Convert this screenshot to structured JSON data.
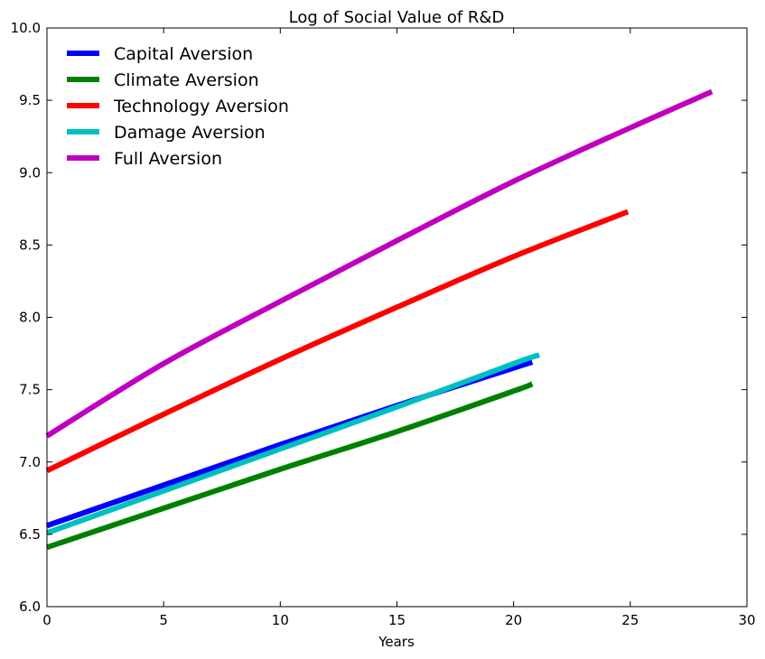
{
  "chart_data": {
    "type": "line",
    "title": "Log of Social Value of R&D",
    "xlabel": "Years",
    "ylabel": "",
    "xlim": [
      0,
      30
    ],
    "ylim": [
      6.0,
      10.0
    ],
    "xticks": [
      "0",
      "5",
      "10",
      "15",
      "20",
      "25",
      "30"
    ],
    "yticks": [
      "6.0",
      "6.5",
      "7.0",
      "7.5",
      "8.0",
      "8.5",
      "9.0",
      "9.5",
      "10.0"
    ],
    "grid": false,
    "legend_position": "top-left",
    "series": [
      {
        "name": "Capital Aversion",
        "color": "#0000ff",
        "x": [
          0,
          5,
          10,
          15,
          20,
          20.8
        ],
        "y": [
          6.56,
          6.84,
          7.12,
          7.39,
          7.65,
          7.69
        ]
      },
      {
        "name": "Climate Aversion",
        "color": "#008000",
        "x": [
          0,
          5,
          10,
          15,
          20,
          20.8
        ],
        "y": [
          6.41,
          6.68,
          6.95,
          7.21,
          7.49,
          7.54
        ]
      },
      {
        "name": "Technology Aversion",
        "color": "#ff0000",
        "x": [
          0,
          5,
          10,
          15,
          20,
          24.9
        ],
        "y": [
          6.94,
          7.33,
          7.71,
          8.07,
          8.42,
          8.73
        ]
      },
      {
        "name": "Damage Aversion",
        "color": "#00bfbf",
        "x": [
          0,
          5,
          10,
          15,
          20,
          21.1
        ],
        "y": [
          6.51,
          6.8,
          7.09,
          7.38,
          7.68,
          7.74
        ]
      },
      {
        "name": "Full Aversion",
        "color": "#bf00bf",
        "x": [
          0,
          5,
          10,
          15,
          20,
          25,
          28.5
        ],
        "y": [
          7.18,
          7.68,
          8.11,
          8.53,
          8.94,
          9.31,
          9.56
        ]
      }
    ]
  }
}
